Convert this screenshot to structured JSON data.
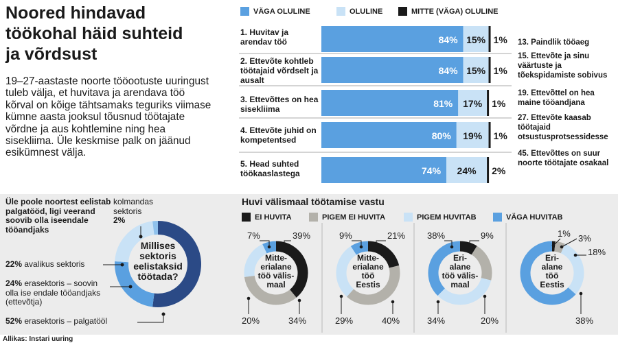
{
  "title": [
    "Noored hindavad",
    "töökohal häid suhteid",
    "ja võrdsust"
  ],
  "intro": "19–27-aastaste noorte tööootuste uuringust tuleb välja, et huvitava ja arendava töö kõrval on kõige tähtsamaks teguriks viimase kümne aasta jooksul tõusnud töötajate võrdne ja aus kohtlemine ning hea sisekliima. Üle keskmise palk on jäänud esikümnest välja.",
  "source": "Allikas: Instari uuring",
  "colors": {
    "dark_blue": "#2b4a86",
    "blue": "#5aa0e0",
    "light_blue": "#c9e2f6",
    "black": "#1a1a1a",
    "gray": "#b3b1aa",
    "panel": "#ececec"
  },
  "chart_data": [
    {
      "type": "bar",
      "orientation": "horizontal-stacked",
      "legend": [
        "VÄGA OLULINE",
        "OLULINE",
        "MITTE (VÄGA) OLULINE"
      ],
      "categories": [
        "1. Huvitav ja arendav töö",
        "2. Ettevõte kohtleb töötajaid võrdselt ja ausalt",
        "3. Ettevõttes on hea sisekliima",
        "4. Ettevõte juhid on kompetentsed",
        "5. Head suhted töökaaslastega"
      ],
      "series": [
        {
          "name": "VÄGA OLULINE",
          "values": [
            84,
            84,
            81,
            80,
            74
          ]
        },
        {
          "name": "OLULINE",
          "values": [
            15,
            15,
            17,
            19,
            24
          ]
        },
        {
          "name": "MITTE (VÄGA) OLULINE",
          "values": [
            1,
            1,
            1,
            1,
            2
          ]
        }
      ],
      "value_labels": [
        [
          "84%",
          "15%",
          "1%"
        ],
        [
          "84%",
          "15%",
          "1%"
        ],
        [
          "81%",
          "17%",
          "1%"
        ],
        [
          "80%",
          "19%",
          "1%"
        ],
        [
          "74%",
          "24%",
          "2%"
        ]
      ],
      "other_ranks": [
        "13. Paindlik tööaeg",
        "15. Ettevõte ja sinu väärtuste ja tõekspidamiste sobivus",
        "19. Ettevõttel on hea maine tööandjana",
        "27. Ettevõte kaasab töötajaid otsustusprotsessidesse",
        "45. Ettevõttes on suur noorte töötajate osakaal"
      ]
    },
    {
      "type": "pie",
      "style": "donut",
      "heading": "Üle poole noortest eelistab palgatööd, ligi veerand soovib olla iseendale tööandjaks",
      "center_text": "Millises sektoris eelistaksid töötada?",
      "slices": [
        {
          "label": "palgatöö",
          "value": 52
        },
        {
          "label": "ise endale tööandjaks",
          "value": 24
        },
        {
          "label": "avalik sektor",
          "value": 22
        },
        {
          "label": "kolmas sektor",
          "value": 2
        }
      ],
      "label_texts": {
        "kolmas_pct": "2%",
        "kolmas_label": "kolmandas sektoris",
        "avalik_pct": "22%",
        "avalik_label": "avalikus sektoris",
        "erasektor_pct": "24%",
        "erasektor_label": "erasektoris – soovin olla ise endale tööandjaks (ettevõtja)",
        "palgatoo_pct": "52%",
        "palgatoo_label": "erasektoris – palgatööl"
      }
    },
    {
      "type": "pie",
      "style": "donut-group",
      "title": "Huvi välismaal töötamise vastu",
      "legend": [
        "EI HUVITA",
        "PIGEM EI HUVITA",
        "PIGEM HUVITAB",
        "VÄGA HUVITAB"
      ],
      "charts": [
        {
          "center": "Mitte-erialane töö välismaal",
          "values": {
            "ei_huvita": 39,
            "pigem_ei": 34,
            "pigem_huvitab": 20,
            "vaga_huvitab": 7
          }
        },
        {
          "center": "Mitte-erialane töö Eestis",
          "values": {
            "ei_huvita": 21,
            "pigem_ei": 40,
            "pigem_huvitab": 29,
            "vaga_huvitab": 9
          }
        },
        {
          "center": "Eri-alane töö välis-maal",
          "values": {
            "ei_huvita": 9,
            "pigem_ei": 20,
            "pigem_huvitab": 34,
            "vaga_huvitab": 38
          }
        },
        {
          "center": "Eri-alane töö Eestis",
          "values": {
            "ei_huvita": 1,
            "pigem_ei": 3,
            "pigem_huvitab": 18,
            "vaga_huvitab": 38
          }
        }
      ],
      "labels": [
        {
          "tl": "7%",
          "tr": "39%",
          "bl": "20%",
          "br": "34%"
        },
        {
          "tl": "9%",
          "tr": "21%",
          "bl": "29%",
          "br": "40%"
        },
        {
          "tl": "38%",
          "tr": "9%",
          "bl": "34%",
          "br": "20%"
        },
        {
          "t1": "1%",
          "t2": "3%",
          "r": "18%",
          "b": "38%"
        }
      ]
    }
  ]
}
